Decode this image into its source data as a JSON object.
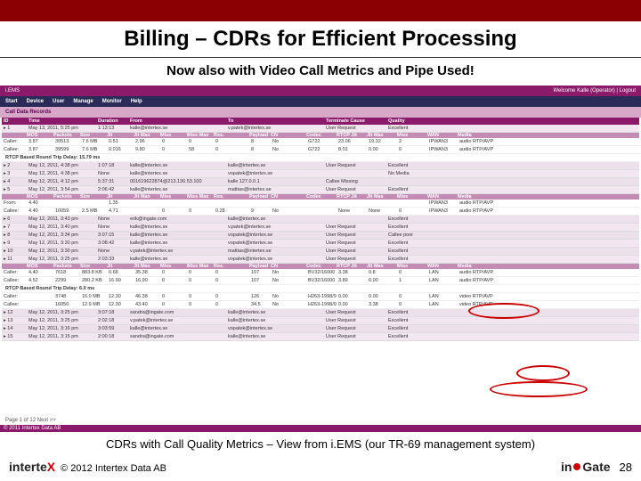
{
  "slide": {
    "title": "Billing – CDRs for Efficient Processing",
    "subtitle": "Now also with Video Call Metrics and Pipe Used!",
    "caption": "CDRs with Call Quality Metrics – View from i.EMS (our TR-69 management system)",
    "copyright": "© 2012 Intertex Data AB",
    "page_number": "28"
  },
  "app": {
    "brand": "i.EMS",
    "welcome": "Welcome Kalle (Operator) | Logout",
    "menu": [
      "Start",
      "Device",
      "User",
      "Manage",
      "Monitor",
      "Help"
    ],
    "section": "Call Data Records",
    "footer": "© 2011 Intertex Data AB",
    "main_headers": [
      "ID",
      "Time",
      "Duration",
      "From",
      "To",
      "Terminate Cause",
      "Quality"
    ],
    "sub_headers": [
      "",
      "MOS",
      "Packets",
      "Size",
      "Jit",
      "Jit Max",
      "Miss",
      "Miss Max",
      "Res.",
      "Payload",
      "CN",
      "Codec",
      "RTCP Jit",
      "Jit Max",
      "Miss",
      "WAN",
      "Media"
    ],
    "rows": [
      {
        "id": "1",
        "time": "May 13, 2011, 5:25 pm",
        "dur": "1:13:13",
        "from": "kalle@intertex.se",
        "to": "v.patek@intertex.se",
        "term": "User Request",
        "qual": "Excellent",
        "sub": [
          {
            "lab": "Caller:",
            "mos": "3.87",
            "pkt": "39513",
            "size": "7.6 MB",
            "jit": "0.51",
            "jitm": "2.96",
            "miss": "0",
            "missm": "0",
            "res": "0",
            "pl": "8",
            "cn": "No",
            "codec": "G722",
            "rjit": "23.06",
            "rjitm": "19.32",
            "rmiss": "2",
            "wan": "IPWAN3",
            "media": "audio RTP/AVP"
          },
          {
            "lab": "Callee:",
            "mos": "3.87",
            "pkt": "39599",
            "size": "7.6 MB",
            "jit": "0.016",
            "jitm": "9.80",
            "miss": "0",
            "missm": "58",
            "res": "0",
            "pl": "8",
            "cn": "No",
            "codec": "G722",
            "rjit": "8.01",
            "rjitm": "0.00",
            "rmiss": "0",
            "wan": "IPWAN3",
            "media": "audio RTP/AVP"
          }
        ],
        "rtcp": "RTCP Based Round Trip Delay: 15.79 ms"
      },
      {
        "id": "2",
        "time": "May 12, 2011, 4:38 pm",
        "dur": "1:07:18",
        "from": "kalle@intertex.se",
        "to": "kalle@intertex.se",
        "term": "User Request",
        "qual": "Excellent"
      },
      {
        "id": "3",
        "time": "May 12, 2011, 4:38 pm",
        "dur": "None",
        "from": "kalle@intertex.se",
        "to": "vopatek@intertex.se",
        "term": "",
        "qual": "No Media"
      },
      {
        "id": "4",
        "time": "May 12, 2011, 4:12 pm",
        "dur": "5:37:31",
        "from": "001619622874@213.136.53.100",
        "to": "kalle 127.0.0.1",
        "term": "Callee Missing",
        "qual": ""
      },
      {
        "id": "5",
        "time": "May 12, 2011, 3:54 pm",
        "dur": "2:06:42",
        "from": "kalle@intertex.se",
        "to": "mattias@intertex.se",
        "term": "User Request",
        "qual": "Excellent",
        "sub": [
          {
            "lab": "From:",
            "mos": "4.40",
            "pkt": "",
            "size": "",
            "jit": "1.35",
            "jitm": "",
            "miss": "",
            "missm": "",
            "res": "",
            "pl": "",
            "cn": "",
            "codec": "",
            "rjit": "",
            "rjitm": "",
            "rmiss": "",
            "wan": "IPWAN3",
            "media": "audio RTP/AVP"
          },
          {
            "lab": "Callee:",
            "mos": "4.40",
            "pkt": "10059",
            "size": "2.5 MB",
            "jit": "4.71",
            "jitm": "",
            "miss": "0",
            "missm": "0",
            "res": "0.28",
            "pl": "9",
            "cn": "No",
            "codec": "",
            "rjit": "None",
            "rjitm": "None",
            "rmiss": "0",
            "wan": "IPWAN3",
            "media": "audio RTP/AVP"
          }
        ]
      },
      {
        "id": "6",
        "time": "May 12, 2011, 3:43 pm",
        "dur": "None",
        "from": "erik@ingate.com",
        "to": "kalle@intertex.se",
        "term": "",
        "qual": "Excellent"
      },
      {
        "id": "7",
        "time": "May 12, 2011, 3:40 pm",
        "dur": "None",
        "from": "kalle@intertex.se",
        "to": "v.patek@intertex.se",
        "term": "User Request",
        "qual": "Excellent"
      },
      {
        "id": "8",
        "time": "May 12, 2011, 3:34 pm",
        "dur": "3:07:15",
        "from": "kalle@intertex.se",
        "to": "vopatek@intertex.se",
        "term": "User Request",
        "qual": "Callee poor"
      },
      {
        "id": "9",
        "time": "May 12, 2011, 3:30 pm",
        "dur": "3:08:42",
        "from": "kalle@intertex.se",
        "to": "vopatek@intertex.se",
        "term": "User Request",
        "qual": "Excellent"
      },
      {
        "id": "10",
        "time": "May 12, 2011, 3:30 pm",
        "dur": "None",
        "from": "v.patek@intertex.se",
        "to": "mattias@intertex.se",
        "term": "User Request",
        "qual": "Excellent"
      },
      {
        "id": "11",
        "time": "May 12, 2011, 3:25 pm",
        "dur": "2:03:33",
        "from": "kalle@intertex.se",
        "to": "vopatek@intertex.se",
        "term": "User Request",
        "qual": "Excellent",
        "subhdr": [
          "",
          "MOS",
          "Packets",
          "Size",
          "Jit",
          "Jit Max",
          "Miss",
          "Miss Max",
          "Res.",
          "Payload",
          "CN",
          "Codec",
          "RTCP Jit",
          "Jit Max",
          "Miss",
          "WAN",
          "Media"
        ],
        "sub": [
          {
            "lab": "Caller:",
            "mos": "4.40",
            "pkt": "7618",
            "size": "883.8 KB",
            "jit": "0.68",
            "jitm": "35.38",
            "miss": "0",
            "missm": "0",
            "res": "0",
            "pl": "107",
            "cn": "No",
            "codec": "BV32/16000",
            "rjit": "3.38",
            "rjitm": "9.8",
            "rmiss": "0",
            "wan": "LAN",
            "media": "audio RTP/AVP"
          },
          {
            "lab": "Callee:",
            "mos": "4.52",
            "pkt": "2299",
            "size": "280.2 KB",
            "jit": "16.90",
            "jitm": "16.90",
            "miss": "0",
            "missm": "0",
            "res": "0",
            "pl": "107",
            "cn": "No",
            "codec": "BV32/16000",
            "rjit": "3.89",
            "rjitm": "0.00",
            "rmiss": "1",
            "wan": "LAN",
            "media": "audio RTP/AVP"
          }
        ],
        "rtcp": "RTCP Based Round Trip Delay: 6.0 ms",
        "sub2": [
          {
            "lab": "Caller:",
            "mos": "",
            "pkt": "3748",
            "size": "16.0 MB",
            "jit": "12.30",
            "jitm": "46.38",
            "miss": "0",
            "missm": "0",
            "res": "0",
            "pl": "126",
            "cn": "No",
            "codec": "H263-1998/90000",
            "rjit": "0.00",
            "rjitm": "0.00",
            "rmiss": "0",
            "wan": "LAN",
            "media": "video RTP/AVP"
          },
          {
            "lab": "Callee:",
            "mos": "",
            "pkt": "16050",
            "size": "12.9 MB",
            "jit": "12.30",
            "jitm": "43.40",
            "miss": "0",
            "missm": "0",
            "res": "0",
            "pl": "34.5",
            "cn": "No",
            "codec": "H263-1998/90000",
            "rjit": "0.00",
            "rjitm": "3.38",
            "rmiss": "0",
            "wan": "LAN",
            "media": "video RTP/AVP"
          }
        ]
      },
      {
        "id": "12",
        "time": "May 12, 2011, 3:25 pm",
        "dur": "3:07:18",
        "from": "sandra@ingate.com",
        "to": "kalle@intertex.se",
        "term": "User Request",
        "qual": "Excellent"
      },
      {
        "id": "13",
        "time": "May 12, 2011, 3:25 pm",
        "dur": "2:02:18",
        "from": "v.patek@intertex.se",
        "to": "kalle@intertex.se",
        "term": "User Request",
        "qual": "Excellent"
      },
      {
        "id": "14",
        "time": "May 12, 2011, 3:16 pm",
        "dur": "3:03:59",
        "from": "kalle@intertex.se",
        "to": "vopatek@intertex.se",
        "term": "User Request",
        "qual": "Excellent"
      },
      {
        "id": "15",
        "time": "May 12, 2011, 3:15 pm",
        "dur": "2:00:18",
        "from": "sandra@ingate.com",
        "to": "kalle@intertex.se",
        "term": "User Request",
        "qual": "Excellent"
      }
    ],
    "pager": "Page 1 of 12 Next >>"
  },
  "colors": {
    "red_bar": "#8b0000",
    "app_purple": "#8b1a6b",
    "menu_blue": "#2b2b5a",
    "section_pink": "#d8a8c8",
    "subhdr": "#c48bb5",
    "row_bg": "#f2e6f0",
    "circle": "#c00"
  }
}
